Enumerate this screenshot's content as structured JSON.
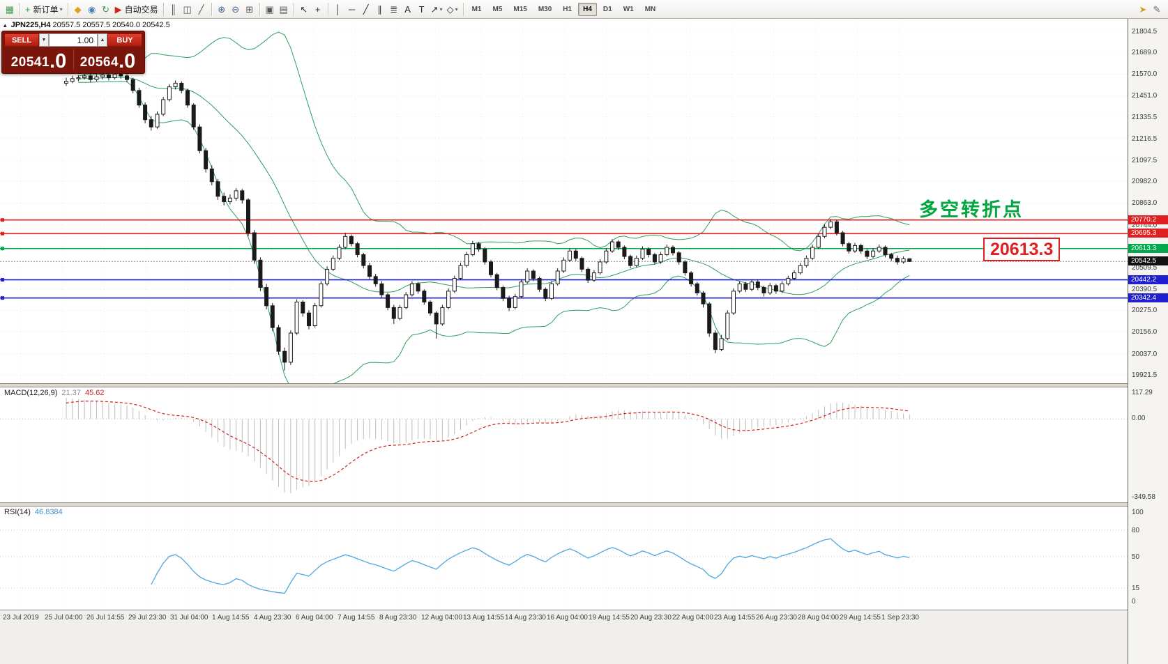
{
  "toolbar": {
    "groups": [
      {
        "items": [
          {
            "name": "new-chart-button",
            "glyph": "▦",
            "color": "#3f9e4d"
          }
        ]
      },
      {
        "items": [
          {
            "name": "new-order-button",
            "glyph": "+",
            "color": "#2ea043",
            "label": "新订单",
            "caret": true
          }
        ]
      },
      {
        "items": [
          {
            "name": "profiles-icon",
            "glyph": "◆",
            "color": "#d9a520"
          },
          {
            "name": "market-watch-icon",
            "glyph": "◉",
            "color": "#4a7ebd"
          },
          {
            "name": "refresh-icon",
            "glyph": "↻",
            "color": "#3a9a55"
          },
          {
            "name": "autotrading-button",
            "glyph": "▶",
            "color": "#c8281e",
            "label": "自动交易"
          }
        ]
      },
      {
        "items": [
          {
            "name": "bar-chart-icon",
            "glyph": "║",
            "color": "#555555"
          },
          {
            "name": "candlestick-chart-icon",
            "glyph": "◫",
            "color": "#555555"
          },
          {
            "name": "line-chart-icon",
            "glyph": "╱",
            "color": "#555555"
          }
        ]
      },
      {
        "items": [
          {
            "name": "zoom-in-icon",
            "glyph": "⊕",
            "color": "#44628c"
          },
          {
            "name": "zoom-out-icon",
            "glyph": "⊖",
            "color": "#44628c"
          },
          {
            "name": "tile-windows-icon",
            "glyph": "⊞",
            "color": "#555555"
          }
        ]
      },
      {
        "items": [
          {
            "name": "arrange-windows-icon",
            "glyph": "▣",
            "color": "#555555"
          },
          {
            "name": "cascade-windows-icon",
            "glyph": "▤",
            "color": "#555555"
          }
        ]
      },
      {
        "items": [
          {
            "name": "cursor-icon",
            "glyph": "↖",
            "color": "#2b2b2b"
          },
          {
            "name": "crosshair-icon",
            "glyph": "+",
            "color": "#2b2b2b"
          }
        ]
      },
      {
        "items": [
          {
            "name": "vertical-line-icon",
            "glyph": "│",
            "color": "#2b2b2b"
          },
          {
            "name": "horizontal-line-icon",
            "glyph": "─",
            "color": "#2b2b2b"
          },
          {
            "name": "trendline-icon",
            "glyph": "╱",
            "color": "#2b2b2b"
          },
          {
            "name": "channel-icon",
            "glyph": "∥",
            "color": "#2b2b2b"
          },
          {
            "name": "fibonacci-icon",
            "glyph": "≣",
            "color": "#2b2b2b"
          },
          {
            "name": "text-icon",
            "glyph": "A",
            "color": "#2b2b2b"
          },
          {
            "name": "label-icon",
            "glyph": "T",
            "color": "#2b2b2b"
          },
          {
            "name": "arrows-icon",
            "glyph": "↗",
            "color": "#2b2b2b",
            "caret": true
          },
          {
            "name": "shapes-icon",
            "glyph": "◇",
            "color": "#2b2b2b",
            "caret": true
          }
        ]
      }
    ],
    "right_items": [
      {
        "name": "quick-message-icon",
        "glyph": "➤",
        "color": "#c9a227"
      },
      {
        "name": "edit-icon",
        "glyph": "✎",
        "color": "#6b6b6b"
      }
    ]
  },
  "timeframes": {
    "items": [
      "M1",
      "M5",
      "M15",
      "M30",
      "H1",
      "H4",
      "D1",
      "W1",
      "MN"
    ],
    "active": "H4"
  },
  "symbol_info": {
    "collapse_glyph": "▴",
    "name": "JPN225,H4",
    "ohlc": "20557.5 20557.5 20540.0 20542.5"
  },
  "trade_panel": {
    "sell_label": "SELL",
    "buy_label": "BUY",
    "volume": "1.00",
    "vol_down_glyph": "▼",
    "vol_up_glyph": "▲",
    "sell_price_main": "20541",
    "sell_price_sub": ".0",
    "buy_price_main": "20564",
    "buy_price_sub": ".0"
  },
  "annotation": {
    "text": "多空转折点",
    "color": "#00a63e"
  },
  "price_callout": {
    "text": "20613.3"
  },
  "chart_data": {
    "type": "candlestick",
    "symbol": "JPN225",
    "timeframe": "H4",
    "colors": {
      "bollinger": "#2f9e5f",
      "red_line": "#e02020",
      "green_line": "#00a84e",
      "blue_line": "#2020d0",
      "current_tag": "#111111",
      "rsi_line": "#4da6e0",
      "macd_hist": "#bdbdbd",
      "macd_signal": "#d02020"
    },
    "y_axis_labels": [
      21804.5,
      21689.0,
      21570.0,
      21451.0,
      21335.5,
      21216.5,
      21097.5,
      20982.0,
      20863.0,
      20744.0,
      20625.0,
      20509.5,
      20390.5,
      20275.0,
      20156.0,
      20037.0,
      19921.5
    ],
    "time_labels": [
      "23 Jul 2019",
      "25 Jul 04:00",
      "26 Jul 14:55",
      "29 Jul 23:30",
      "31 Jul 04:00",
      "1 Aug 14:55",
      "4 Aug 23:30",
      "6 Aug 04:00",
      "7 Aug 14:55",
      "8 Aug 23:30",
      "12 Aug 04:00",
      "13 Aug 14:55",
      "14 Aug 23:30",
      "16 Aug 04:00",
      "19 Aug 14:55",
      "20 Aug 23:30",
      "22 Aug 04:00",
      "23 Aug 14:55",
      "26 Aug 23:30",
      "28 Aug 04:00",
      "29 Aug 14:55",
      "1 Sep 23:30"
    ],
    "hlines": [
      {
        "price": 20770.2,
        "label": "20770.2",
        "color": "#e02020"
      },
      {
        "price": 20695.3,
        "label": "20695.3",
        "color": "#e02020"
      },
      {
        "price": 20613.3,
        "label": "20613.3",
        "color": "#00a84e"
      },
      {
        "price": 20442.2,
        "label": "20442.2",
        "color": "#2020d0"
      },
      {
        "price": 20342.4,
        "label": "20342.4",
        "color": "#2020d0"
      }
    ],
    "current_price": {
      "value": 20542.5,
      "label": "20542.5"
    },
    "indicators": {
      "bollinger": {
        "period": 20,
        "deviation": 2
      },
      "macd": {
        "name": "MACD(12,26,9)",
        "value_main": "21.37",
        "value_signal": "45.62",
        "axis": [
          "117.29",
          "0.00",
          "-349.58"
        ]
      },
      "rsi": {
        "name": "RSI(14)",
        "value": "46.8384",
        "axis": [
          100,
          80,
          50,
          15,
          0
        ],
        "levels": [
          80,
          50,
          15
        ]
      }
    },
    "candles": [
      [
        21520,
        21550,
        21505,
        21530
      ],
      [
        21530,
        21560,
        21520,
        21545
      ],
      [
        21545,
        21565,
        21530,
        21550
      ],
      [
        21550,
        21575,
        21540,
        21560
      ],
      [
        21560,
        21570,
        21525,
        21540
      ],
      [
        21540,
        21570,
        21530,
        21555
      ],
      [
        21555,
        21580,
        21540,
        21565
      ],
      [
        21565,
        21575,
        21535,
        21550
      ],
      [
        21550,
        21585,
        21540,
        21570
      ],
      [
        21570,
        21580,
        21545,
        21560
      ],
      [
        21560,
        21570,
        21525,
        21540
      ],
      [
        21540,
        21550,
        21465,
        21480
      ],
      [
        21480,
        21495,
        21385,
        21400
      ],
      [
        21400,
        21415,
        21300,
        21320
      ],
      [
        21320,
        21340,
        21260,
        21280
      ],
      [
        21280,
        21365,
        21270,
        21350
      ],
      [
        21350,
        21445,
        21340,
        21430
      ],
      [
        21430,
        21515,
        21420,
        21500
      ],
      [
        21500,
        21535,
        21485,
        21520
      ],
      [
        21520,
        21530,
        21465,
        21480
      ],
      [
        21480,
        21490,
        21385,
        21400
      ],
      [
        21400,
        21410,
        21265,
        21280
      ],
      [
        21280,
        21295,
        21135,
        21150
      ],
      [
        21150,
        21165,
        21030,
        21050
      ],
      [
        21050,
        21070,
        20960,
        20980
      ],
      [
        20980,
        20995,
        20880,
        20900
      ],
      [
        20900,
        20920,
        20850,
        20870
      ],
      [
        20870,
        20910,
        20855,
        20890
      ],
      [
        20890,
        20945,
        20875,
        20930
      ],
      [
        20930,
        20940,
        20860,
        20880
      ],
      [
        20880,
        20890,
        20680,
        20700
      ],
      [
        20700,
        20715,
        20530,
        20550
      ],
      [
        20550,
        20565,
        20380,
        20400
      ],
      [
        20400,
        20420,
        20280,
        20300
      ],
      [
        20300,
        20315,
        20160,
        20180
      ],
      [
        20180,
        20195,
        20030,
        20050
      ],
      [
        20050,
        20070,
        19945,
        19990
      ],
      [
        19990,
        20165,
        19975,
        20150
      ],
      [
        20150,
        20335,
        20140,
        20320
      ],
      [
        20320,
        20330,
        20240,
        20260
      ],
      [
        20260,
        20275,
        20170,
        20190
      ],
      [
        20190,
        20315,
        20180,
        20300
      ],
      [
        20300,
        20435,
        20290,
        20420
      ],
      [
        20420,
        20515,
        20410,
        20500
      ],
      [
        20500,
        20575,
        20490,
        20560
      ],
      [
        20560,
        20635,
        20550,
        20620
      ],
      [
        20620,
        20700,
        20610,
        20680
      ],
      [
        20680,
        20690,
        20625,
        20640
      ],
      [
        20640,
        20650,
        20565,
        20580
      ],
      [
        20580,
        20590,
        20505,
        20520
      ],
      [
        20520,
        20535,
        20445,
        20460
      ],
      [
        20460,
        20475,
        20405,
        20420
      ],
      [
        20420,
        20435,
        20345,
        20360
      ],
      [
        20360,
        20370,
        20275,
        20290
      ],
      [
        20290,
        20305,
        20200,
        20230
      ],
      [
        20230,
        20305,
        20220,
        20290
      ],
      [
        20290,
        20375,
        20280,
        20360
      ],
      [
        20360,
        20435,
        20350,
        20420
      ],
      [
        20420,
        20430,
        20365,
        20380
      ],
      [
        20380,
        20390,
        20305,
        20320
      ],
      [
        20320,
        20330,
        20245,
        20260
      ],
      [
        20260,
        20270,
        20120,
        20200
      ],
      [
        20200,
        20305,
        20190,
        20290
      ],
      [
        20290,
        20395,
        20280,
        20380
      ],
      [
        20380,
        20465,
        20370,
        20450
      ],
      [
        20450,
        20535,
        20440,
        20520
      ],
      [
        20520,
        20595,
        20510,
        20580
      ],
      [
        20580,
        20655,
        20570,
        20640
      ],
      [
        20640,
        20650,
        20595,
        20610
      ],
      [
        20610,
        20620,
        20525,
        20540
      ],
      [
        20540,
        20550,
        20455,
        20470
      ],
      [
        20470,
        20480,
        20385,
        20400
      ],
      [
        20400,
        20410,
        20325,
        20340
      ],
      [
        20340,
        20355,
        20270,
        20290
      ],
      [
        20290,
        20365,
        20280,
        20350
      ],
      [
        20350,
        20445,
        20340,
        20430
      ],
      [
        20430,
        20505,
        20420,
        20490
      ],
      [
        20490,
        20500,
        20435,
        20450
      ],
      [
        20450,
        20460,
        20375,
        20390
      ],
      [
        20390,
        20400,
        20325,
        20340
      ],
      [
        20340,
        20435,
        20330,
        20420
      ],
      [
        20420,
        20505,
        20410,
        20490
      ],
      [
        20490,
        20565,
        20480,
        20550
      ],
      [
        20550,
        20615,
        20540,
        20600
      ],
      [
        20600,
        20610,
        20545,
        20560
      ],
      [
        20560,
        20570,
        20485,
        20500
      ],
      [
        20500,
        20510,
        20425,
        20440
      ],
      [
        20440,
        20495,
        20430,
        20480
      ],
      [
        20480,
        20555,
        20470,
        20540
      ],
      [
        20540,
        20615,
        20530,
        20600
      ],
      [
        20600,
        20665,
        20590,
        20650
      ],
      [
        20650,
        20660,
        20605,
        20620
      ],
      [
        20620,
        20630,
        20555,
        20570
      ],
      [
        20570,
        20580,
        20505,
        20520
      ],
      [
        20520,
        20575,
        20510,
        20560
      ],
      [
        20560,
        20625,
        20550,
        20610
      ],
      [
        20610,
        20620,
        20565,
        20580
      ],
      [
        20580,
        20590,
        20525,
        20540
      ],
      [
        20540,
        20595,
        20530,
        20580
      ],
      [
        20580,
        20635,
        20570,
        20620
      ],
      [
        20620,
        20630,
        20575,
        20590
      ],
      [
        20590,
        20600,
        20525,
        20540
      ],
      [
        20540,
        20550,
        20465,
        20480
      ],
      [
        20480,
        20490,
        20405,
        20420
      ],
      [
        20420,
        20430,
        20355,
        20370
      ],
      [
        20370,
        20380,
        20290,
        20310
      ],
      [
        20310,
        20320,
        20130,
        20150
      ],
      [
        20150,
        20165,
        20040,
        20060
      ],
      [
        20060,
        20140,
        20050,
        20120
      ],
      [
        20120,
        20275,
        20110,
        20260
      ],
      [
        20260,
        20395,
        20250,
        20380
      ],
      [
        20380,
        20435,
        20370,
        20420
      ],
      [
        20420,
        20430,
        20375,
        20390
      ],
      [
        20390,
        20445,
        20380,
        20430
      ],
      [
        20430,
        20440,
        20385,
        20400
      ],
      [
        20400,
        20410,
        20350,
        20370
      ],
      [
        20370,
        20425,
        20360,
        20410
      ],
      [
        20410,
        20420,
        20365,
        20380
      ],
      [
        20380,
        20435,
        20370,
        20420
      ],
      [
        20420,
        20465,
        20410,
        20450
      ],
      [
        20450,
        20495,
        20440,
        20480
      ],
      [
        20480,
        20535,
        20470,
        20520
      ],
      [
        20520,
        20575,
        20510,
        20560
      ],
      [
        20560,
        20635,
        20550,
        20620
      ],
      [
        20620,
        20695,
        20610,
        20680
      ],
      [
        20680,
        20745,
        20670,
        20730
      ],
      [
        20730,
        20775,
        20720,
        20760
      ],
      [
        20760,
        20770,
        20685,
        20700
      ],
      [
        20700,
        20710,
        20625,
        20640
      ],
      [
        20640,
        20650,
        20585,
        20600
      ],
      [
        20600,
        20645,
        20590,
        20630
      ],
      [
        20630,
        20640,
        20585,
        20600
      ],
      [
        20600,
        20610,
        20555,
        20570
      ],
      [
        20570,
        20615,
        20560,
        20600
      ],
      [
        20600,
        20635,
        20590,
        20620
      ],
      [
        20620,
        20630,
        20565,
        20580
      ],
      [
        20580,
        20590,
        20545,
        20560
      ],
      [
        20560,
        20575,
        20525,
        20540
      ],
      [
        20540,
        20570,
        20530,
        20557.5
      ],
      [
        20557.5,
        20557.5,
        20540,
        20542.5
      ]
    ]
  }
}
